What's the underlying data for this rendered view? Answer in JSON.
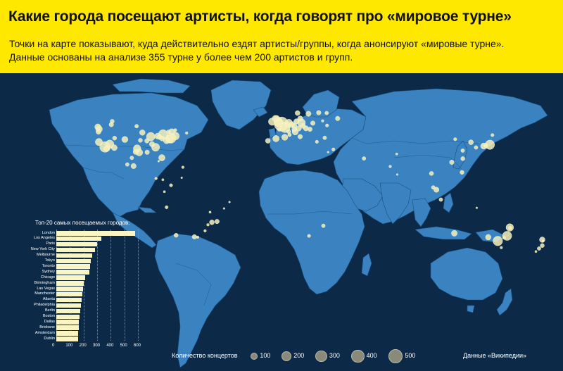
{
  "header": {
    "title": "Какие города посещают артисты, когда говорят про «мировое турне»",
    "subtitle_line1": "Точки на карте показывают, куда действительно ездят артисты/группы, когда анонсируют «мировые турне».",
    "subtitle_line2": "Данные основаны на анализе 355 турне у более чем 200 артистов и групп."
  },
  "colors": {
    "header_bg": "#ffe800",
    "ocean": "#0c2a47",
    "land": "#3a83c0",
    "dots": "#f4f0b8",
    "bars": "#fbf5c4"
  },
  "ranking": {
    "title": "Топ-20 самых посещаемых городов:",
    "cities": [
      {
        "name": "London",
        "value": 580
      },
      {
        "name": "Los Angeles",
        "value": 330
      },
      {
        "name": "Paris",
        "value": 300
      },
      {
        "name": "New York City",
        "value": 285
      },
      {
        "name": "Melbourne",
        "value": 265
      },
      {
        "name": "Tokyo",
        "value": 255
      },
      {
        "name": "Toronto",
        "value": 250
      },
      {
        "name": "Sydney",
        "value": 245
      },
      {
        "name": "Chicago",
        "value": 210
      },
      {
        "name": "Birmingham",
        "value": 200
      },
      {
        "name": "Las Vegas",
        "value": 195
      },
      {
        "name": "Manchester",
        "value": 190
      },
      {
        "name": "Atlanta",
        "value": 185
      },
      {
        "name": "Philadelphia",
        "value": 180
      },
      {
        "name": "Berlin",
        "value": 175
      },
      {
        "name": "Boston",
        "value": 170
      },
      {
        "name": "Dallas",
        "value": 165
      },
      {
        "name": "Brisbane",
        "value": 165
      },
      {
        "name": "Amsterdam",
        "value": 160
      },
      {
        "name": "Dublin",
        "value": 160
      }
    ],
    "axis_max": 600,
    "axis_ticks": [
      "0",
      "100",
      "200",
      "300",
      "400",
      "500",
      "600"
    ]
  },
  "legend": {
    "title": "Количество концертов",
    "items": [
      {
        "label": "100",
        "value": 100
      },
      {
        "label": "200",
        "value": 200
      },
      {
        "label": "300",
        "value": 300
      },
      {
        "label": "400",
        "value": 400
      },
      {
        "label": "500",
        "value": 500
      }
    ]
  },
  "source": "Данные «Википедии»",
  "map_points": [
    {
      "lon": -0.1,
      "lat": 51.5,
      "n": 580
    },
    {
      "lon": 2.35,
      "lat": 48.85,
      "n": 300
    },
    {
      "lon": 13.4,
      "lat": 52.5,
      "n": 175
    },
    {
      "lon": 4.9,
      "lat": 52.37,
      "n": 160
    },
    {
      "lon": -6.26,
      "lat": 53.35,
      "n": 160
    },
    {
      "lon": -2.24,
      "lat": 53.48,
      "n": 190
    },
    {
      "lon": -1.9,
      "lat": 52.48,
      "n": 200
    },
    {
      "lon": -3.19,
      "lat": 55.95,
      "n": 90
    },
    {
      "lon": -4.25,
      "lat": 55.86,
      "n": 100
    },
    {
      "lon": 12.5,
      "lat": 41.9,
      "n": 60
    },
    {
      "lon": 9.19,
      "lat": 45.46,
      "n": 110
    },
    {
      "lon": -3.7,
      "lat": 40.4,
      "n": 120
    },
    {
      "lon": 2.17,
      "lat": 41.38,
      "n": 110
    },
    {
      "lon": -9.14,
      "lat": 38.72,
      "n": 70
    },
    {
      "lon": 16.37,
      "lat": 48.2,
      "n": 80
    },
    {
      "lon": 14.42,
      "lat": 50.08,
      "n": 70
    },
    {
      "lon": 21.0,
      "lat": 52.23,
      "n": 60
    },
    {
      "lon": 19.04,
      "lat": 47.5,
      "n": 60
    },
    {
      "lon": 12.57,
      "lat": 55.68,
      "n": 80
    },
    {
      "lon": 18.07,
      "lat": 59.33,
      "n": 80
    },
    {
      "lon": 10.75,
      "lat": 59.91,
      "n": 70
    },
    {
      "lon": 24.94,
      "lat": 60.17,
      "n": 60
    },
    {
      "lon": 37.62,
      "lat": 55.75,
      "n": 60
    },
    {
      "lon": 30.3,
      "lat": 59.94,
      "n": 40
    },
    {
      "lon": 8.55,
      "lat": 47.37,
      "n": 70
    },
    {
      "lon": 4.35,
      "lat": 50.85,
      "n": 90
    },
    {
      "lon": 6.96,
      "lat": 50.94,
      "n": 90
    },
    {
      "lon": 11.58,
      "lat": 48.14,
      "n": 80
    },
    {
      "lon": 8.68,
      "lat": 50.11,
      "n": 70
    },
    {
      "lon": 9.99,
      "lat": 53.55,
      "n": 80
    },
    {
      "lon": 4.83,
      "lat": 45.76,
      "n": 50
    },
    {
      "lon": 5.37,
      "lat": 43.3,
      "n": 40
    },
    {
      "lon": -1.55,
      "lat": 47.22,
      "n": 30
    },
    {
      "lon": 28.98,
      "lat": 41.01,
      "n": 40
    },
    {
      "lon": 23.73,
      "lat": 37.98,
      "n": 30
    },
    {
      "lon": 34.78,
      "lat": 32.08,
      "n": 30
    },
    {
      "lon": 55.27,
      "lat": 25.2,
      "n": 40
    },
    {
      "lon": 31.24,
      "lat": 30.04,
      "n": 10
    },
    {
      "lon": 28.05,
      "lat": -26.2,
      "n": 40
    },
    {
      "lon": 18.42,
      "lat": -33.92,
      "n": 30
    },
    {
      "lon": 30.5,
      "lat": 50.45,
      "n": 30
    },
    {
      "lon": 27.56,
      "lat": 53.9,
      "n": 20
    },
    {
      "lon": -74.0,
      "lat": 40.71,
      "n": 285
    },
    {
      "lon": -118.24,
      "lat": 34.05,
      "n": 330
    },
    {
      "lon": -87.63,
      "lat": 41.88,
      "n": 210
    },
    {
      "lon": -79.38,
      "lat": 43.65,
      "n": 250
    },
    {
      "lon": -115.14,
      "lat": 36.17,
      "n": 195
    },
    {
      "lon": -84.39,
      "lat": 33.75,
      "n": 185
    },
    {
      "lon": -75.17,
      "lat": 39.95,
      "n": 180
    },
    {
      "lon": -71.06,
      "lat": 42.36,
      "n": 170
    },
    {
      "lon": -96.8,
      "lat": 32.78,
      "n": 165
    },
    {
      "lon": -122.42,
      "lat": 37.77,
      "n": 150
    },
    {
      "lon": -122.33,
      "lat": 47.61,
      "n": 130
    },
    {
      "lon": -123.12,
      "lat": 49.28,
      "n": 110
    },
    {
      "lon": -73.57,
      "lat": 45.5,
      "n": 120
    },
    {
      "lon": -95.37,
      "lat": 29.76,
      "n": 140
    },
    {
      "lon": -80.19,
      "lat": 25.76,
      "n": 120
    },
    {
      "lon": -104.99,
      "lat": 39.74,
      "n": 110
    },
    {
      "lon": -112.07,
      "lat": 33.45,
      "n": 100
    },
    {
      "lon": -93.27,
      "lat": 44.98,
      "n": 90
    },
    {
      "lon": -83.05,
      "lat": 42.33,
      "n": 100
    },
    {
      "lon": -77.04,
      "lat": 38.9,
      "n": 120
    },
    {
      "lon": -86.78,
      "lat": 36.16,
      "n": 80
    },
    {
      "lon": -90.07,
      "lat": 29.95,
      "n": 60
    },
    {
      "lon": -97.74,
      "lat": 30.27,
      "n": 80
    },
    {
      "lon": -117.16,
      "lat": 32.72,
      "n": 90
    },
    {
      "lon": -122.68,
      "lat": 45.52,
      "n": 70
    },
    {
      "lon": -81.69,
      "lat": 41.5,
      "n": 70
    },
    {
      "lon": -80.0,
      "lat": 40.44,
      "n": 70
    },
    {
      "lon": -90.2,
      "lat": 38.63,
      "n": 60
    },
    {
      "lon": -94.58,
      "lat": 39.1,
      "n": 50
    },
    {
      "lon": -111.89,
      "lat": 40.76,
      "n": 50
    },
    {
      "lon": -114.07,
      "lat": 51.05,
      "n": 60
    },
    {
      "lon": -113.49,
      "lat": 53.55,
      "n": 50
    },
    {
      "lon": -97.14,
      "lat": 49.9,
      "n": 40
    },
    {
      "lon": -75.7,
      "lat": 45.42,
      "n": 50
    },
    {
      "lon": -71.21,
      "lat": 46.81,
      "n": 30
    },
    {
      "lon": -63.57,
      "lat": 44.65,
      "n": 20
    },
    {
      "lon": -99.13,
      "lat": 19.43,
      "n": 80
    },
    {
      "lon": -103.35,
      "lat": 20.67,
      "n": 40
    },
    {
      "lon": -100.32,
      "lat": 25.69,
      "n": 40
    },
    {
      "lon": -82.37,
      "lat": 23.13,
      "n": 10
    },
    {
      "lon": -66.1,
      "lat": 18.47,
      "n": 20
    },
    {
      "lon": -84.09,
      "lat": 9.93,
      "n": 20
    },
    {
      "lon": -79.52,
      "lat": 8.98,
      "n": 15
    },
    {
      "lon": -74.07,
      "lat": 4.71,
      "n": 30
    },
    {
      "lon": -77.04,
      "lat": -12.05,
      "n": 30
    },
    {
      "lon": -70.65,
      "lat": -33.45,
      "n": 50
    },
    {
      "lon": -58.38,
      "lat": -34.6,
      "n": 60
    },
    {
      "lon": -46.63,
      "lat": -23.55,
      "n": 70
    },
    {
      "lon": -43.2,
      "lat": -22.9,
      "n": 60
    },
    {
      "lon": -56.16,
      "lat": -34.9,
      "n": 20
    },
    {
      "lon": -78.47,
      "lat": -0.18,
      "n": 15
    },
    {
      "lon": -66.9,
      "lat": 10.5,
      "n": 10
    },
    {
      "lon": -49.27,
      "lat": -25.43,
      "n": 20
    },
    {
      "lon": -51.23,
      "lat": -30.03,
      "n": 20
    },
    {
      "lon": -47.88,
      "lat": -15.79,
      "n": 15
    },
    {
      "lon": -38.5,
      "lat": -12.97,
      "n": 10
    },
    {
      "lon": -34.88,
      "lat": -8.05,
      "n": 10
    },
    {
      "lon": 139.69,
      "lat": 35.69,
      "n": 255
    },
    {
      "lon": 135.5,
      "lat": 34.69,
      "n": 110
    },
    {
      "lon": 136.9,
      "lat": 35.18,
      "n": 50
    },
    {
      "lon": 130.4,
      "lat": 33.59,
      "n": 40
    },
    {
      "lon": 141.35,
      "lat": 43.06,
      "n": 30
    },
    {
      "lon": 126.98,
      "lat": 37.57,
      "n": 70
    },
    {
      "lon": 121.47,
      "lat": 31.23,
      "n": 40
    },
    {
      "lon": 116.4,
      "lat": 39.9,
      "n": 30
    },
    {
      "lon": 114.17,
      "lat": 22.32,
      "n": 60
    },
    {
      "lon": 121.56,
      "lat": 25.04,
      "n": 50
    },
    {
      "lon": 103.82,
      "lat": 1.35,
      "n": 80
    },
    {
      "lon": 101.69,
      "lat": 3.14,
      "n": 40
    },
    {
      "lon": 100.5,
      "lat": 13.75,
      "n": 50
    },
    {
      "lon": 106.85,
      "lat": -6.2,
      "n": 40
    },
    {
      "lon": 120.98,
      "lat": 14.6,
      "n": 50
    },
    {
      "lon": 72.88,
      "lat": 19.08,
      "n": 20
    },
    {
      "lon": 77.2,
      "lat": 28.6,
      "n": 15
    },
    {
      "lon": 77.59,
      "lat": 12.97,
      "n": 10
    },
    {
      "lon": 151.21,
      "lat": -33.87,
      "n": 245
    },
    {
      "lon": 144.96,
      "lat": -37.81,
      "n": 265
    },
    {
      "lon": 153.03,
      "lat": -27.47,
      "n": 165
    },
    {
      "lon": 138.6,
      "lat": -34.93,
      "n": 90
    },
    {
      "lon": 115.86,
      "lat": -31.95,
      "n": 100
    },
    {
      "lon": 149.13,
      "lat": -35.28,
      "n": 30
    },
    {
      "lon": 153.4,
      "lat": -28.0,
      "n": 40
    },
    {
      "lon": 147.33,
      "lat": -42.88,
      "n": 20
    },
    {
      "lon": 130.84,
      "lat": -12.46,
      "n": 10
    },
    {
      "lon": 174.76,
      "lat": -36.85,
      "n": 90
    },
    {
      "lon": 174.78,
      "lat": -41.29,
      "n": 50
    },
    {
      "lon": 172.64,
      "lat": -43.53,
      "n": 40
    },
    {
      "lon": 170.5,
      "lat": -45.87,
      "n": 15
    },
    {
      "lon": 175.28,
      "lat": -37.79,
      "n": 15
    }
  ]
}
